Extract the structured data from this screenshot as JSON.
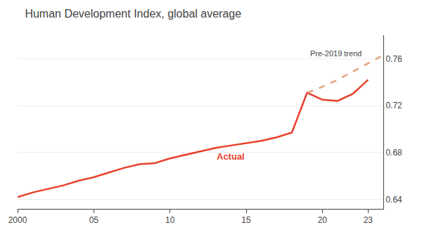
{
  "chart_data": {
    "type": "line",
    "title": "Human Development Index, global average",
    "series": [
      {
        "name": "Actual",
        "color": "#e8402a",
        "line_style": "solid",
        "x": [
          2000,
          2001,
          2002,
          2003,
          2004,
          2005,
          2006,
          2007,
          2008,
          2009,
          2010,
          2011,
          2012,
          2013,
          2014,
          2015,
          2016,
          2017,
          2018,
          2019,
          2020,
          2021,
          2022,
          2023
        ],
        "values": [
          0.642,
          0.646,
          0.649,
          0.652,
          0.656,
          0.659,
          0.663,
          0.667,
          0.67,
          0.671,
          0.675,
          0.678,
          0.681,
          0.684,
          0.686,
          0.688,
          0.69,
          0.693,
          0.697,
          0.731,
          0.725,
          0.724,
          0.73,
          0.742
        ]
      },
      {
        "name": "Pre-2019 trend",
        "color": "#e8a080",
        "line_style": "dash",
        "x": [
          2019,
          2020,
          2021,
          2022,
          2023,
          2024
        ],
        "values": [
          0.731,
          0.736,
          0.742,
          0.749,
          0.756,
          0.763
        ]
      }
    ],
    "xlim": [
      2000,
      2024
    ],
    "ylim": [
      0.632,
      0.78
    ],
    "xticks": [
      2000,
      {
        "value": 2005,
        "label": "05"
      },
      {
        "value": 2010,
        "label": "10"
      },
      {
        "value": 2015,
        "label": "15"
      },
      {
        "value": 2020,
        "label": "20"
      },
      {
        "value": 2023,
        "label": "23"
      }
    ],
    "yticks": [
      0.64,
      0.68,
      0.72,
      0.76
    ],
    "grid": true
  }
}
